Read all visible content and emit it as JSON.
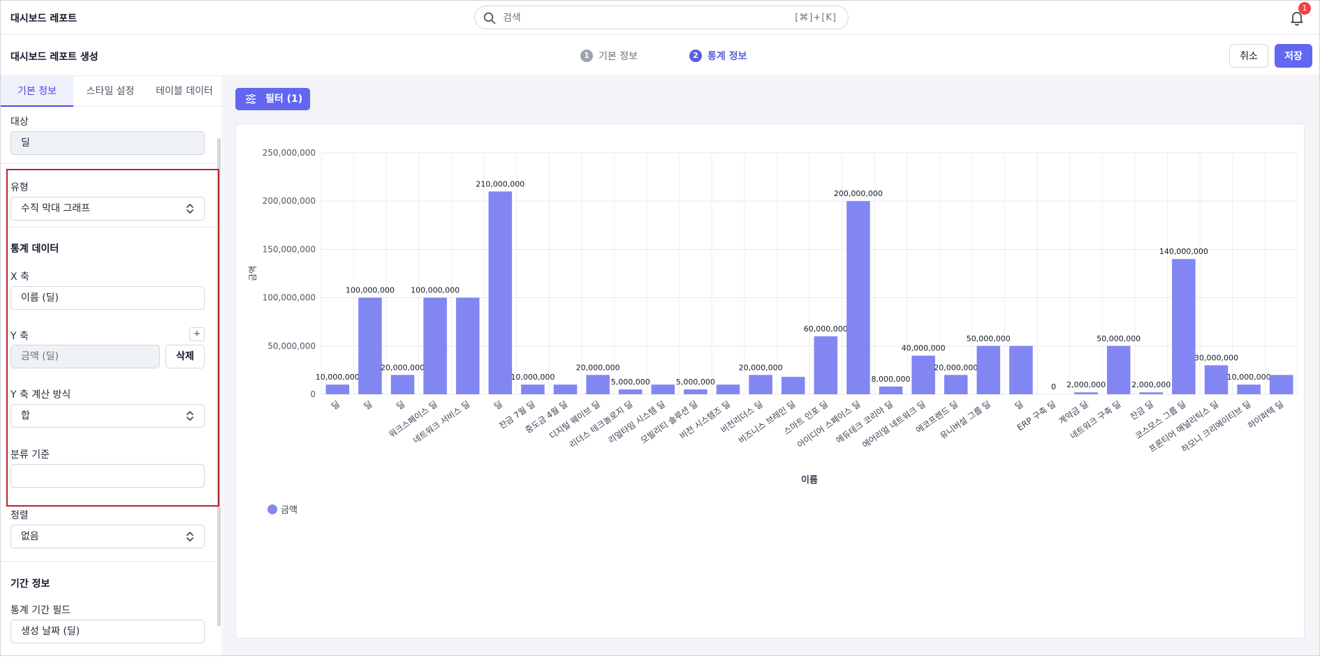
{
  "app": {
    "title": "대시보드 레포트"
  },
  "search": {
    "placeholder": "검색",
    "shortcut": "[⌘]+[K]"
  },
  "notifications": {
    "count": "1"
  },
  "header": {
    "title": "대시보드 레포트 생성",
    "steps": [
      {
        "num": "1",
        "label": "기본 정보"
      },
      {
        "num": "2",
        "label": "통계 정보"
      }
    ],
    "cancel_label": "취소",
    "save_label": "저장"
  },
  "sidebar": {
    "tabs": [
      "기본 정보",
      "스타일 설정",
      "테이블 데이터"
    ],
    "target_label": "대상",
    "target_value": "딜",
    "type_label": "유형",
    "type_value": "수직 막대 그래프",
    "stats_heading": "통계 데이터",
    "x_label": "X 축",
    "x_value": "이름 (딜)",
    "y_label": "Y 축",
    "y_add": "+",
    "y_value": "금액 (딜)",
    "y_delete": "삭제",
    "y_calc_label": "Y 축 계산 방식",
    "y_calc_value": "합",
    "group_label": "분류 기준",
    "group_value": "",
    "sort_label": "정렬",
    "sort_value": "없음",
    "period_heading": "기간 정보",
    "period_field_label": "통계 기간 필드",
    "period_field_value": "생성 날짜 (딜)"
  },
  "main": {
    "filter_label": "필터 (1)"
  },
  "colors": {
    "accent": "#6366f1",
    "bar": "#8286f3",
    "highlight": "#b3262d",
    "badge": "#ef4444"
  },
  "chart_data": {
    "type": "bar",
    "xlabel": "이름",
    "ylabel": "금액",
    "ylim": [
      0,
      250000000
    ],
    "yticks": [
      "0",
      "50,000,000",
      "100,000,000",
      "150,000,000",
      "200,000,000",
      "250,000,000"
    ],
    "legend": "bottom-left",
    "grid": true,
    "categories": [
      "딜",
      "딜",
      "딜",
      "워크스페이스 딜",
      "네트워크 서비스 딜",
      "딜",
      "잔금 7월 딜",
      "중도금 4월 딜",
      "디지털 웨이브 딜",
      "리더스 테크놀로지 딜",
      "리얼타임 시스템 딜",
      "모빌리티 솔루션 딜",
      "비전 시스템즈 딜",
      "비전리더스 딜",
      "비즈니스 브레인 딜",
      "스마트 인포 딜",
      "아이디어 스페이스 딜",
      "에듀테크 코리아 딜",
      "에어리얼 네트워크 딜",
      "에코프렌드 딜",
      "유니버설 그룹 딜",
      "딜",
      "ERP 구축 딜",
      "계약금 딜",
      "네트워크 구축 딜",
      "잔금 딜",
      "코스모스 그룹 딜",
      "프론티어 애널리틱스 딜",
      "하모니 크리에이티브 딜",
      "하이퍼텍 딜"
    ],
    "series": [
      {
        "name": "금액",
        "values": [
          10000000,
          100000000,
          20000000,
          100000000,
          100000000,
          210000000,
          10000000,
          10000000,
          20000000,
          5000000,
          10000000,
          5000000,
          10000000,
          20000000,
          18000000,
          60000000,
          200000000,
          8000000,
          40000000,
          20000000,
          50000000,
          50000000,
          0,
          2000000,
          50000000,
          2000000,
          140000000,
          30000000,
          10000000,
          20000000
        ],
        "labels": [
          "10,000,000",
          "100,000,000",
          "20,000,000",
          "100,000,000",
          "",
          "210,000,000",
          "10,000,000",
          "",
          "20,000,000",
          "5,000,000",
          "",
          "5,000,000",
          "",
          "20,000,000",
          "",
          "60,000,000",
          "200,000,000",
          "8,000,000",
          "40,000,000",
          "20,000,000",
          "50,000,000",
          "",
          "0",
          "2,000,000",
          "50,000,000",
          "2,000,000",
          "140,000,000",
          "30,000,000",
          "10,000,000",
          ""
        ]
      }
    ]
  }
}
